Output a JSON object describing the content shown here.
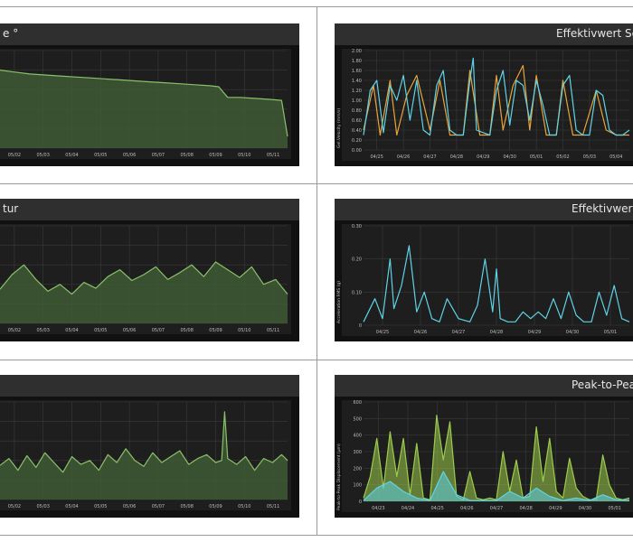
{
  "colors": {
    "background": "#ffffff",
    "panel": "#111111",
    "title_bar": "#2f2f2f",
    "plot": "#1e1e1e",
    "grid": "#3a3a3a",
    "green_line": "#8ac06a",
    "green_fill": "#3e5a34",
    "cyan_line": "#5fd3e6",
    "orange_line": "#e7a43a",
    "lime_line": "#9ccc4c"
  },
  "chart_data": [
    {
      "id": "left_top",
      "type": "area",
      "title": "e °",
      "ylabel": "",
      "x_ticks": [
        "05/02",
        "05/03",
        "05/04",
        "05/05",
        "05/06",
        "05/07",
        "05/08",
        "05/09",
        "05/10",
        "05/11"
      ],
      "y_ticks": [],
      "x": [
        0,
        0.5,
        1,
        1.5,
        2,
        2.5,
        3,
        3.5,
        4,
        4.5,
        5,
        5.5,
        6,
        6.5,
        7,
        7.3,
        7.6,
        8.0,
        8.5,
        9.0,
        9.4,
        9.6
      ],
      "values": [
        0.8,
        0.78,
        0.76,
        0.75,
        0.74,
        0.73,
        0.72,
        0.71,
        0.7,
        0.69,
        0.68,
        0.67,
        0.66,
        0.65,
        0.64,
        0.63,
        0.52,
        0.52,
        0.51,
        0.5,
        0.49,
        0.12
      ],
      "ylim": [
        0,
        1
      ]
    },
    {
      "id": "left_middle",
      "type": "area",
      "title": "tur",
      "ylabel": "",
      "x_ticks": [
        "05/02",
        "05/03",
        "05/04",
        "05/05",
        "05/06",
        "05/07",
        "05/08",
        "05/09",
        "05/10",
        "05/11"
      ],
      "y_ticks": [],
      "x": [
        0,
        0.4,
        0.8,
        1.2,
        1.6,
        2.0,
        2.4,
        2.8,
        3.2,
        3.6,
        4.0,
        4.4,
        4.8,
        5.2,
        5.6,
        6.0,
        6.4,
        6.8,
        7.2,
        7.6,
        8.0,
        8.4,
        8.8,
        9.2,
        9.6
      ],
      "values": [
        0.35,
        0.5,
        0.6,
        0.45,
        0.33,
        0.4,
        0.3,
        0.42,
        0.36,
        0.48,
        0.55,
        0.44,
        0.5,
        0.58,
        0.45,
        0.52,
        0.6,
        0.48,
        0.63,
        0.55,
        0.47,
        0.58,
        0.4,
        0.45,
        0.3
      ],
      "ylim": [
        0,
        1
      ]
    },
    {
      "id": "left_bottom",
      "type": "area",
      "title": "",
      "ylabel": "",
      "x_ticks": [
        "05/02",
        "05/03",
        "05/04",
        "05/05",
        "05/06",
        "05/07",
        "05/08",
        "05/09",
        "05/10",
        "05/11"
      ],
      "y_ticks": [],
      "x": [
        0,
        0.3,
        0.6,
        0.9,
        1.2,
        1.5,
        1.8,
        2.1,
        2.4,
        2.7,
        3.0,
        3.3,
        3.6,
        3.9,
        4.2,
        4.5,
        4.8,
        5.1,
        5.4,
        5.7,
        6.0,
        6.3,
        6.6,
        6.9,
        7.2,
        7.4,
        7.5,
        7.6,
        7.9,
        8.2,
        8.5,
        8.8,
        9.1,
        9.4,
        9.6
      ],
      "values": [
        0.35,
        0.42,
        0.3,
        0.45,
        0.33,
        0.48,
        0.38,
        0.28,
        0.44,
        0.36,
        0.4,
        0.3,
        0.46,
        0.38,
        0.52,
        0.4,
        0.34,
        0.48,
        0.38,
        0.44,
        0.5,
        0.36,
        0.42,
        0.46,
        0.38,
        0.4,
        0.9,
        0.42,
        0.36,
        0.44,
        0.3,
        0.42,
        0.38,
        0.46,
        0.4
      ],
      "ylim": [
        0,
        1
      ]
    },
    {
      "id": "right_top",
      "type": "line",
      "title": "Effektivwert Schw",
      "ylabel": "Gel.Velocity (mm/s)",
      "x_ticks": [
        "04/25",
        "04/26",
        "04/27",
        "04/28",
        "04/29",
        "04/30",
        "05/01",
        "05/02",
        "05/03",
        "05/04"
      ],
      "y_ticks": [
        "0.00",
        "0.20",
        "0.40",
        "0.60",
        "0.80",
        "1.00",
        "1.20",
        "1.40",
        "1.60",
        "1.80",
        "2.00"
      ],
      "ylim": [
        0,
        2
      ],
      "series": [
        {
          "color": "#e7a43a",
          "x": [
            0,
            0.3,
            0.5,
            0.8,
            1.0,
            1.3,
            1.6,
            2.0,
            2.3,
            2.6,
            3.0,
            3.2,
            3.5,
            3.8,
            4.0,
            4.2,
            4.5,
            4.8,
            5.0,
            5.2,
            5.5,
            5.8,
            6.0,
            6.3,
            6.6,
            7.0,
            7.3,
            7.6,
            8.0
          ],
          "values": [
            0.4,
            1.3,
            0.3,
            1.4,
            0.3,
            1.1,
            1.5,
            0.4,
            1.4,
            0.3,
            0.3,
            1.6,
            0.3,
            0.3,
            1.5,
            0.4,
            1.3,
            1.7,
            0.4,
            1.5,
            0.3,
            0.3,
            1.4,
            0.3,
            0.3,
            1.2,
            0.4,
            0.3,
            0.3
          ]
        },
        {
          "color": "#5fd3e6",
          "x": [
            0,
            0.2,
            0.4,
            0.6,
            0.8,
            1.0,
            1.2,
            1.4,
            1.6,
            1.8,
            2.0,
            2.2,
            2.4,
            2.6,
            2.8,
            3.0,
            3.2,
            3.3,
            3.4,
            3.6,
            3.8,
            4.0,
            4.2,
            4.4,
            4.6,
            4.8,
            5.0,
            5.2,
            5.4,
            5.6,
            5.8,
            6.0,
            6.2,
            6.4,
            6.6,
            6.8,
            7.0,
            7.2,
            7.4,
            7.6,
            7.8,
            8.0
          ],
          "values": [
            0.3,
            1.2,
            1.4,
            0.35,
            1.3,
            1.0,
            1.5,
            0.6,
            1.4,
            0.4,
            0.3,
            1.3,
            1.6,
            0.4,
            0.3,
            0.3,
            1.4,
            1.85,
            0.4,
            0.35,
            0.3,
            1.2,
            1.6,
            0.5,
            1.4,
            1.3,
            0.6,
            1.4,
            0.9,
            0.3,
            0.3,
            1.3,
            1.5,
            0.4,
            0.3,
            0.3,
            1.2,
            1.1,
            0.4,
            0.3,
            0.3,
            0.4
          ]
        }
      ]
    },
    {
      "id": "right_middle",
      "type": "line",
      "title": "Effektivwert B",
      "ylabel": "Acceleration RMS (g)",
      "x_ticks": [
        "04/25",
        "04/26",
        "04/27",
        "04/28",
        "04/29",
        "04/30",
        "05/01"
      ],
      "y_ticks": [
        "0",
        "0.10",
        "0.20",
        "0.30"
      ],
      "ylim": [
        0,
        0.3
      ],
      "series": [
        {
          "color": "#5fd3e6",
          "x": [
            0,
            0.3,
            0.5,
            0.7,
            0.8,
            1.0,
            1.2,
            1.4,
            1.6,
            1.8,
            2.0,
            2.2,
            2.5,
            2.8,
            3.0,
            3.2,
            3.4,
            3.5,
            3.6,
            3.8,
            4.0,
            4.2,
            4.4,
            4.6,
            4.8,
            5.0,
            5.2,
            5.4,
            5.6,
            5.8,
            6.0,
            6.2,
            6.4,
            6.6,
            6.8,
            7.0
          ],
          "values": [
            0.01,
            0.08,
            0.02,
            0.2,
            0.05,
            0.12,
            0.24,
            0.04,
            0.1,
            0.02,
            0.01,
            0.08,
            0.02,
            0.01,
            0.06,
            0.2,
            0.04,
            0.17,
            0.02,
            0.01,
            0.01,
            0.04,
            0.02,
            0.04,
            0.02,
            0.08,
            0.02,
            0.1,
            0.03,
            0.01,
            0.01,
            0.1,
            0.03,
            0.12,
            0.02,
            0.01
          ]
        }
      ]
    },
    {
      "id": "right_bottom",
      "type": "area",
      "title": "Peak-to-Pea",
      "ylabel": "Peak-to-Peak Displacement (µm)",
      "x_ticks": [
        "04/23",
        "04/24",
        "04/25",
        "04/26",
        "04/27",
        "04/28",
        "04/29",
        "04/30",
        "05/01"
      ],
      "y_ticks": [
        "0",
        "100",
        "200",
        "300",
        "400",
        "500",
        "600"
      ],
      "ylim": [
        0,
        600
      ],
      "series": [
        {
          "color": "#9ccc4c",
          "x": [
            0,
            0.2,
            0.4,
            0.6,
            0.8,
            1.0,
            1.2,
            1.4,
            1.6,
            1.8,
            2.0,
            2.2,
            2.4,
            2.6,
            2.8,
            3.0,
            3.2,
            3.4,
            3.6,
            3.8,
            4.0,
            4.2,
            4.4,
            4.6,
            4.8,
            5.0,
            5.2,
            5.4,
            5.6,
            5.8,
            6.0,
            6.2,
            6.4,
            6.6,
            6.8,
            7.0,
            7.2,
            7.4,
            7.6,
            7.8,
            8.0
          ],
          "values": [
            20,
            150,
            380,
            80,
            420,
            150,
            380,
            40,
            350,
            20,
            10,
            520,
            250,
            480,
            30,
            10,
            180,
            20,
            10,
            20,
            10,
            300,
            60,
            250,
            20,
            30,
            450,
            120,
            380,
            60,
            20,
            260,
            80,
            30,
            10,
            10,
            280,
            100,
            20,
            10,
            20
          ]
        },
        {
          "color": "#5fd3e6",
          "x": [
            0,
            0.4,
            0.8,
            1.2,
            1.6,
            2.0,
            2.4,
            2.8,
            3.2,
            3.6,
            4.0,
            4.4,
            4.8,
            5.2,
            5.6,
            6.0,
            6.4,
            6.8,
            7.2,
            7.6,
            8.0
          ],
          "values": [
            5,
            80,
            120,
            60,
            20,
            5,
            180,
            40,
            5,
            5,
            5,
            60,
            20,
            80,
            30,
            5,
            20,
            5,
            40,
            10,
            5
          ]
        }
      ]
    }
  ]
}
